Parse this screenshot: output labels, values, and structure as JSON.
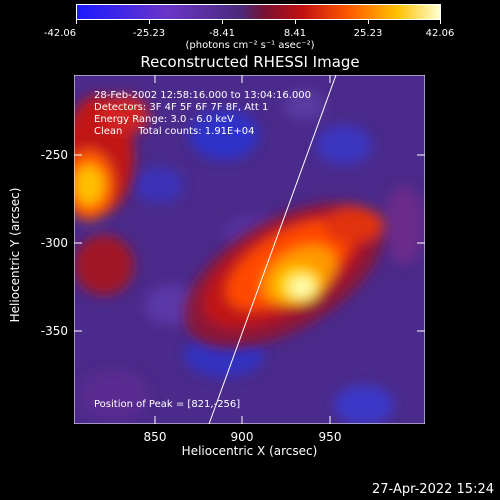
{
  "colorbar": {
    "ticks": [
      "-42.06",
      "-25.23",
      "-8.41",
      "8.41",
      "25.23",
      "42.06"
    ],
    "units": "(photons cm⁻² s⁻¹ asec⁻²)"
  },
  "title": "Reconstructed RHESSI Image",
  "info": {
    "line1": "28-Feb-2002 12:58:16.000 to 13:04:16.000",
    "line2": "Detectors: 3F 4F 5F 6F 7F 8F, Att 1",
    "line3": "Energy Range: 3.0 - 6.0 keV",
    "line4": "Clean     Total counts: 1.91E+04",
    "peak": "Position of Peak = [821,-256]"
  },
  "axes": {
    "xlabel": "Heliocentric X (arcsec)",
    "ylabel": "Heliocentric Y (arcsec)",
    "xticks": [
      "850",
      "900",
      "950"
    ],
    "yticks": [
      "-250",
      "-300",
      "-350"
    ]
  },
  "footer": {
    "timestamp": "27-Apr-2022 15:24"
  }
}
